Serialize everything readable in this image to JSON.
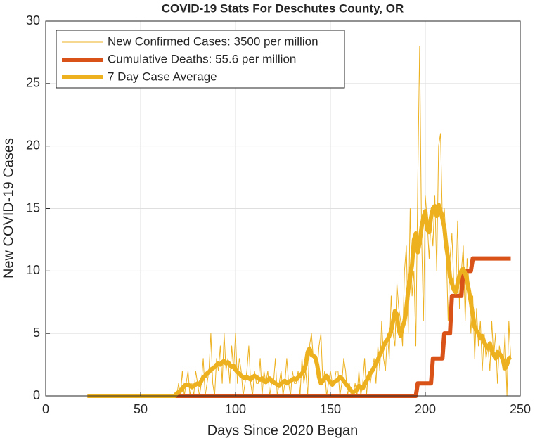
{
  "chart_data": {
    "type": "line",
    "title": "COVID-19 Stats For Deschutes County, OR",
    "x_label": "Days Since 2020 Began",
    "y_label": "New COVID-19 Cases",
    "xlim": [
      0,
      250
    ],
    "ylim": [
      0,
      30
    ],
    "xticks": [
      0,
      50,
      100,
      150,
      200,
      250
    ],
    "yticks": [
      0,
      5,
      10,
      15,
      20,
      25,
      30
    ],
    "grid": true,
    "legend": "upper left",
    "x": [
      22,
      23,
      24,
      25,
      26,
      27,
      28,
      29,
      30,
      31,
      32,
      33,
      34,
      35,
      36,
      37,
      38,
      39,
      40,
      41,
      42,
      43,
      44,
      45,
      46,
      47,
      48,
      49,
      50,
      51,
      52,
      53,
      54,
      55,
      56,
      57,
      58,
      59,
      60,
      61,
      62,
      63,
      64,
      65,
      66,
      67,
      68,
      69,
      70,
      71,
      72,
      73,
      74,
      75,
      76,
      77,
      78,
      79,
      80,
      81,
      82,
      83,
      84,
      85,
      86,
      87,
      88,
      89,
      90,
      91,
      92,
      93,
      94,
      95,
      96,
      97,
      98,
      99,
      100,
      101,
      102,
      103,
      104,
      105,
      106,
      107,
      108,
      109,
      110,
      111,
      112,
      113,
      114,
      115,
      116,
      117,
      118,
      119,
      120,
      121,
      122,
      123,
      124,
      125,
      126,
      127,
      128,
      129,
      130,
      131,
      132,
      133,
      134,
      135,
      136,
      137,
      138,
      139,
      140,
      141,
      142,
      143,
      144,
      145,
      146,
      147,
      148,
      149,
      150,
      151,
      152,
      153,
      154,
      155,
      156,
      157,
      158,
      159,
      160,
      161,
      162,
      163,
      164,
      165,
      166,
      167,
      168,
      169,
      170,
      171,
      172,
      173,
      174,
      175,
      176,
      177,
      178,
      179,
      180,
      181,
      182,
      183,
      184,
      185,
      186,
      187,
      188,
      189,
      190,
      191,
      192,
      193,
      194,
      195,
      196,
      197,
      198,
      199,
      200,
      201,
      202,
      203,
      204,
      205,
      206,
      207,
      208,
      209,
      210,
      211,
      212,
      213,
      214,
      215,
      216,
      217,
      218,
      219,
      220,
      221,
      222,
      223,
      224,
      225,
      226,
      227,
      228,
      229,
      230,
      231,
      232,
      233,
      234,
      235,
      236,
      237,
      238,
      239,
      240,
      241,
      242,
      243,
      244,
      245
    ],
    "series": [
      {
        "name": "New Confirmed Cases: 3500 per million",
        "color": "#EDB120",
        "width": 1,
        "values": [
          0,
          0,
          0,
          0,
          0,
          0,
          0,
          0,
          0,
          0,
          0,
          0,
          0,
          0,
          0,
          0,
          0,
          0,
          0,
          0,
          0,
          0,
          0,
          0,
          0,
          0,
          0,
          0,
          0,
          0,
          0,
          0,
          0,
          0,
          0,
          0,
          0,
          0,
          0,
          0,
          0,
          0,
          0,
          0,
          0,
          0,
          0,
          0,
          1,
          0,
          2,
          0,
          1,
          2,
          0,
          1,
          0,
          2,
          1,
          0,
          1,
          3,
          0,
          1,
          2,
          5,
          1,
          0,
          3,
          2,
          4,
          1,
          5,
          2,
          3,
          1,
          4,
          2,
          5,
          1,
          3,
          2,
          0,
          1,
          2,
          4,
          1,
          0,
          2,
          1,
          1,
          3,
          0,
          2,
          1,
          2,
          0,
          1,
          1,
          3,
          0,
          1,
          2,
          0,
          1,
          3,
          1,
          0,
          2,
          1,
          1,
          2,
          0,
          3,
          1,
          2,
          0,
          4,
          5,
          3,
          3,
          2,
          4,
          5,
          1,
          2,
          0,
          1,
          2,
          1,
          1,
          2,
          2,
          0,
          1,
          3,
          2,
          0,
          1,
          0,
          0,
          1,
          0,
          2,
          0,
          1,
          3,
          0,
          2,
          1,
          2,
          3,
          1,
          4,
          2,
          6,
          3,
          2,
          5,
          3,
          8,
          5,
          4,
          9,
          7,
          6,
          4,
          10,
          12,
          5,
          15,
          8,
          10,
          4,
          17,
          28,
          13,
          6,
          16,
          14,
          11,
          14,
          12,
          16,
          10,
          20,
          21,
          14,
          15,
          12,
          6,
          11,
          13,
          9,
          8,
          14,
          7,
          10,
          12,
          6,
          11,
          9,
          5,
          8,
          3,
          7,
          4,
          6,
          2,
          5,
          3,
          4,
          2,
          6,
          3,
          5,
          1,
          4,
          3,
          2,
          5,
          0,
          6,
          3
        ]
      },
      {
        "name": "Cumulative Deaths: 55.6 per million",
        "color": "#D95319",
        "width": 6,
        "values": [
          0,
          0,
          0,
          0,
          0,
          0,
          0,
          0,
          0,
          0,
          0,
          0,
          0,
          0,
          0,
          0,
          0,
          0,
          0,
          0,
          0,
          0,
          0,
          0,
          0,
          0,
          0,
          0,
          0,
          0,
          0,
          0,
          0,
          0,
          0,
          0,
          0,
          0,
          0,
          0,
          0,
          0,
          0,
          0,
          0,
          0,
          0,
          0,
          0,
          0,
          0,
          0,
          0,
          0,
          0,
          0,
          0,
          0,
          0,
          0,
          0,
          0,
          0,
          0,
          0,
          0,
          0,
          0,
          0,
          0,
          0,
          0,
          0,
          0,
          0,
          0,
          0,
          0,
          0,
          0,
          0,
          0,
          0,
          0,
          0,
          0,
          0,
          0,
          0,
          0,
          0,
          0,
          0,
          0,
          0,
          0,
          0,
          0,
          0,
          0,
          0,
          0,
          0,
          0,
          0,
          0,
          0,
          0,
          0,
          0,
          0,
          0,
          0,
          0,
          0,
          0,
          0,
          0,
          0,
          0,
          0,
          0,
          0,
          0,
          0,
          0,
          0,
          0,
          0,
          0,
          0,
          0,
          0,
          0,
          0,
          0,
          0,
          0,
          0,
          0,
          0,
          0,
          0,
          0,
          0,
          0,
          0,
          0,
          0,
          0,
          0,
          0,
          0,
          0,
          0,
          0,
          0,
          0,
          0,
          0,
          0,
          0,
          0,
          0,
          0,
          0,
          0,
          0,
          0,
          0,
          0,
          0,
          0,
          0,
          1,
          1,
          1,
          1,
          1,
          1,
          1,
          1,
          3,
          3,
          3,
          3,
          3,
          3,
          5,
          5,
          5,
          5,
          8,
          8,
          8,
          8,
          8,
          8,
          10,
          10,
          10,
          10,
          10,
          11,
          11,
          11,
          11,
          11,
          11,
          11,
          11,
          11,
          11,
          11,
          11,
          11,
          11,
          11,
          11,
          11,
          11,
          11,
          11,
          11
        ]
      },
      {
        "name": "7 Day Case Average",
        "color": "#EDB120",
        "width": 6,
        "values": [
          0,
          0,
          0,
          0,
          0,
          0,
          0,
          0,
          0,
          0,
          0,
          0,
          0,
          0,
          0,
          0,
          0,
          0,
          0,
          0,
          0,
          0,
          0,
          0,
          0,
          0,
          0,
          0,
          0,
          0,
          0,
          0,
          0,
          0,
          0,
          0,
          0,
          0,
          0,
          0,
          0,
          0,
          0,
          0,
          0,
          0,
          0,
          0.2,
          0.3,
          0.4,
          0.6,
          0.8,
          0.9,
          0.9,
          0.8,
          0.7,
          0.8,
          0.9,
          1.0,
          0.9,
          1.2,
          1.5,
          1.6,
          1.8,
          1.9,
          2.1,
          2.2,
          2.3,
          2.5,
          2.6,
          2.5,
          2.7,
          2.8,
          2.6,
          2.7,
          2.5,
          2.3,
          2.4,
          2.1,
          1.9,
          1.8,
          1.6,
          1.5,
          1.4,
          1.5,
          1.4,
          1.3,
          1.5,
          1.6,
          1.5,
          1.4,
          1.3,
          1.4,
          1.2,
          1.1,
          1.3,
          1.4,
          1.2,
          1.1,
          1.0,
          0.9,
          0.8,
          1.0,
          1.1,
          1.2,
          1.0,
          1.1,
          1.2,
          1.3,
          1.4,
          1.3,
          1.5,
          1.6,
          1.8,
          2.0,
          2.5,
          3.5,
          3.8,
          3.3,
          3.2,
          3.1,
          2.5,
          1.5,
          1.0,
          1.2,
          1.4,
          1.6,
          1.3,
          1.1,
          0.9,
          1.1,
          1.2,
          1.3,
          1.5,
          1.4,
          1.2,
          1.0,
          0.8,
          0.6,
          0.4,
          0.3,
          0.4,
          0.5,
          0.8,
          0.7,
          0.6,
          0.9,
          1.2,
          1.5,
          1.8,
          2.0,
          2.3,
          2.6,
          2.9,
          3.3,
          3.6,
          4.0,
          4.3,
          4.5,
          4.8,
          5.2,
          6.0,
          6.8,
          6.5,
          5.3,
          4.8,
          5.5,
          6.0,
          7.0,
          8.5,
          9.5,
          10.5,
          12.5,
          13.0,
          11.5,
          12.3,
          13.5,
          14.3,
          14.8,
          13.3,
          13.1,
          14.3,
          15.0,
          15.2,
          14.4,
          15.3,
          14.8,
          14.2,
          13.5,
          12.0,
          11.0,
          9.5,
          9.0,
          8.5,
          8.3,
          9.0,
          9.7,
          10.0,
          10.2,
          9.8,
          9.2,
          8.4,
          7.5,
          6.5,
          5.5,
          5.2,
          5.0,
          4.6,
          4.8,
          4.3,
          4.0,
          3.8,
          4.2,
          3.6,
          3.3,
          3.0,
          3.5,
          3.4,
          3.2,
          2.8,
          2.2,
          2.5,
          3.0,
          3.1
        ]
      }
    ]
  }
}
